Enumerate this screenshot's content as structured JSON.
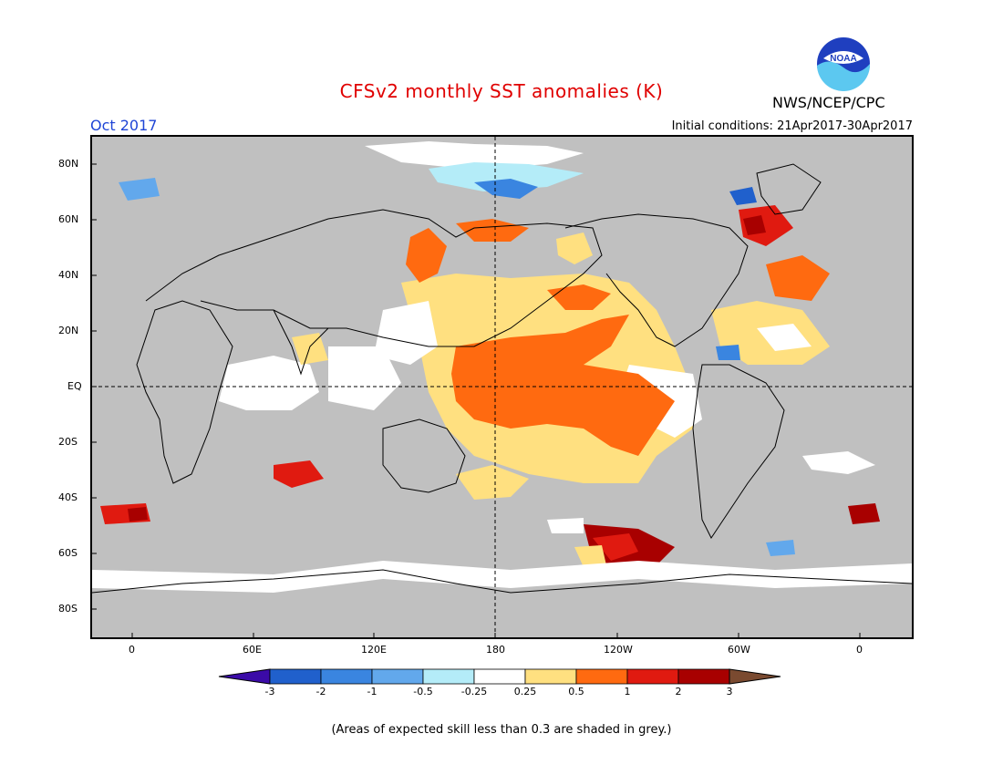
{
  "header": {
    "title": "CFSv2 monthly SST anomalies (K)",
    "month": "Oct 2017",
    "initial_conditions": "Initial conditions: 21Apr2017-30Apr2017",
    "agency": "NWS/NCEP/CPC",
    "logo_text": "NOAA"
  },
  "map": {
    "lat_labels": [
      "80N",
      "60N",
      "40N",
      "20N",
      "EQ",
      "20S",
      "40S",
      "60S",
      "80S"
    ],
    "lon_labels": [
      "0",
      "60E",
      "120E",
      "180",
      "120W",
      "60W",
      "0"
    ],
    "land_color": "#c0c0c0"
  },
  "colorbar": {
    "labels": [
      "-3",
      "-2",
      "-1",
      "-0.5",
      "-0.25",
      "0.25",
      "0.5",
      "1",
      "2",
      "3"
    ],
    "colors": [
      "#3b0ba8",
      "#2060cc",
      "#3a85e0",
      "#62a8ec",
      "#b4ecf8",
      "#ffffff",
      "#ffe080",
      "#ff6a10",
      "#e01a10",
      "#a80000",
      "#7a4a30"
    ]
  },
  "footnote": "(Areas of expected skill less than 0.3 are shaded in grey.)"
}
